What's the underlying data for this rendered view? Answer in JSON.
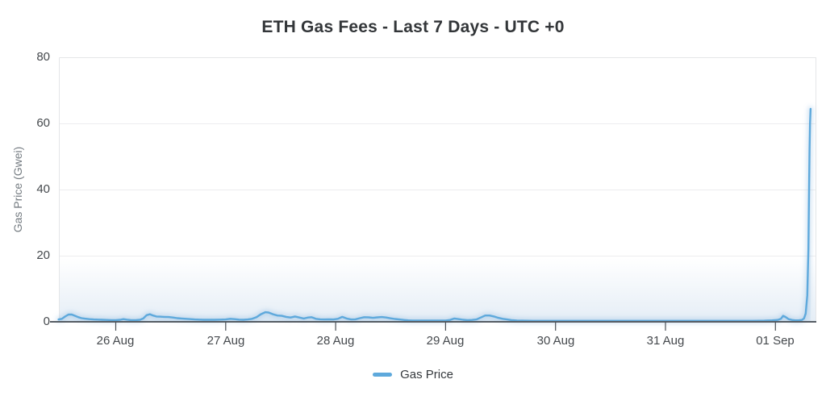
{
  "chart_data": {
    "type": "line",
    "title": "ETH Gas Fees - Last 7 Days - UTC +0",
    "xlabel": "",
    "ylabel": "Gas Price (Gwei)",
    "x_unit": "days since 26 Aug 00:00 UTC",
    "x_tick_labels": [
      "26 Aug",
      "27 Aug",
      "28 Aug",
      "29 Aug",
      "30 Aug",
      "31 Aug",
      "01 Sep"
    ],
    "x_tick_days": [
      0,
      1,
      2,
      3,
      4,
      5,
      6
    ],
    "y_ticks": [
      0,
      20,
      40,
      60,
      80
    ],
    "ylim": [
      0,
      80
    ],
    "xlim": [
      -0.52,
      6.37
    ],
    "grid": true,
    "legend_position": "bottom",
    "colors": {
      "line": "#5ea9dc",
      "glow": "rgba(126,178,222,0.32)",
      "area_fill": "rgba(130,182,226,0.13)",
      "gridline": "#ededef",
      "plot_border": "#e4e6e8",
      "axis_line": "#565d64",
      "tick_text": "#45494d",
      "title_text": "#333639"
    },
    "series": [
      {
        "name": "Gas Price",
        "color": "#5ea9dc",
        "peak_value": 64.4,
        "points": [
          [
            -0.52,
            0.7
          ],
          [
            -0.49,
            0.9
          ],
          [
            -0.46,
            1.6
          ],
          [
            -0.43,
            2.2
          ],
          [
            -0.4,
            2.2
          ],
          [
            -0.37,
            1.8
          ],
          [
            -0.34,
            1.4
          ],
          [
            -0.31,
            1.1
          ],
          [
            -0.28,
            0.95
          ],
          [
            -0.24,
            0.8
          ],
          [
            -0.2,
            0.7
          ],
          [
            -0.16,
            0.65
          ],
          [
            -0.12,
            0.6
          ],
          [
            -0.08,
            0.55
          ],
          [
            -0.04,
            0.5
          ],
          [
            0,
            0.5
          ],
          [
            0.04,
            0.6
          ],
          [
            0.07,
            0.8
          ],
          [
            0.1,
            0.65
          ],
          [
            0.14,
            0.5
          ],
          [
            0.18,
            0.5
          ],
          [
            0.22,
            0.6
          ],
          [
            0.25,
            1.0
          ],
          [
            0.28,
            2.0
          ],
          [
            0.31,
            2.3
          ],
          [
            0.34,
            1.9
          ],
          [
            0.37,
            1.6
          ],
          [
            0.4,
            1.55
          ],
          [
            0.44,
            1.5
          ],
          [
            0.48,
            1.45
          ],
          [
            0.52,
            1.3
          ],
          [
            0.56,
            1.1
          ],
          [
            0.6,
            1.0
          ],
          [
            0.64,
            0.9
          ],
          [
            0.68,
            0.8
          ],
          [
            0.72,
            0.7
          ],
          [
            0.76,
            0.65
          ],
          [
            0.8,
            0.6
          ],
          [
            0.85,
            0.6
          ],
          [
            0.9,
            0.6
          ],
          [
            0.95,
            0.65
          ],
          [
            1.0,
            0.7
          ],
          [
            1.04,
            0.9
          ],
          [
            1.08,
            0.8
          ],
          [
            1.12,
            0.65
          ],
          [
            1.16,
            0.6
          ],
          [
            1.2,
            0.7
          ],
          [
            1.24,
            0.9
          ],
          [
            1.28,
            1.4
          ],
          [
            1.32,
            2.3
          ],
          [
            1.36,
            2.9
          ],
          [
            1.39,
            2.8
          ],
          [
            1.43,
            2.3
          ],
          [
            1.47,
            1.9
          ],
          [
            1.51,
            1.8
          ],
          [
            1.55,
            1.5
          ],
          [
            1.59,
            1.3
          ],
          [
            1.63,
            1.6
          ],
          [
            1.67,
            1.3
          ],
          [
            1.71,
            1.0
          ],
          [
            1.75,
            1.3
          ],
          [
            1.78,
            1.4
          ],
          [
            1.82,
            0.9
          ],
          [
            1.86,
            0.75
          ],
          [
            1.9,
            0.7
          ],
          [
            1.94,
            0.75
          ],
          [
            1.98,
            0.7
          ],
          [
            2.02,
            0.9
          ],
          [
            2.06,
            1.5
          ],
          [
            2.1,
            1.0
          ],
          [
            2.14,
            0.7
          ],
          [
            2.18,
            0.75
          ],
          [
            2.22,
            1.1
          ],
          [
            2.26,
            1.4
          ],
          [
            2.3,
            1.35
          ],
          [
            2.34,
            1.2
          ],
          [
            2.38,
            1.35
          ],
          [
            2.42,
            1.45
          ],
          [
            2.46,
            1.3
          ],
          [
            2.5,
            1.05
          ],
          [
            2.54,
            0.85
          ],
          [
            2.58,
            0.7
          ],
          [
            2.62,
            0.55
          ],
          [
            2.66,
            0.45
          ],
          [
            2.7,
            0.4
          ],
          [
            2.75,
            0.4
          ],
          [
            2.8,
            0.4
          ],
          [
            2.85,
            0.4
          ],
          [
            2.9,
            0.4
          ],
          [
            2.95,
            0.4
          ],
          [
            3.0,
            0.4
          ],
          [
            3.04,
            0.55
          ],
          [
            3.08,
            1.0
          ],
          [
            3.12,
            0.8
          ],
          [
            3.16,
            0.6
          ],
          [
            3.2,
            0.5
          ],
          [
            3.24,
            0.55
          ],
          [
            3.28,
            0.7
          ],
          [
            3.32,
            1.3
          ],
          [
            3.36,
            1.9
          ],
          [
            3.4,
            1.9
          ],
          [
            3.44,
            1.6
          ],
          [
            3.48,
            1.2
          ],
          [
            3.52,
            0.9
          ],
          [
            3.56,
            0.7
          ],
          [
            3.6,
            0.5
          ],
          [
            3.65,
            0.4
          ],
          [
            3.7,
            0.35
          ],
          [
            3.8,
            0.3
          ],
          [
            3.9,
            0.3
          ],
          [
            4.0,
            0.3
          ],
          [
            4.15,
            0.3
          ],
          [
            4.3,
            0.3
          ],
          [
            4.45,
            0.3
          ],
          [
            4.6,
            0.3
          ],
          [
            4.75,
            0.3
          ],
          [
            4.9,
            0.3
          ],
          [
            5.05,
            0.3
          ],
          [
            5.2,
            0.3
          ],
          [
            5.35,
            0.3
          ],
          [
            5.5,
            0.3
          ],
          [
            5.65,
            0.3
          ],
          [
            5.8,
            0.3
          ],
          [
            5.9,
            0.35
          ],
          [
            5.97,
            0.45
          ],
          [
            6.02,
            0.55
          ],
          [
            6.05,
            0.9
          ],
          [
            6.07,
            1.8
          ],
          [
            6.09,
            1.5
          ],
          [
            6.12,
            0.8
          ],
          [
            6.15,
            0.55
          ],
          [
            6.18,
            0.45
          ],
          [
            6.21,
            0.45
          ],
          [
            6.24,
            0.55
          ],
          [
            6.26,
            1.0
          ],
          [
            6.275,
            2.5
          ],
          [
            6.29,
            8
          ],
          [
            6.3,
            22
          ],
          [
            6.305,
            38
          ],
          [
            6.31,
            52
          ],
          [
            6.315,
            60
          ],
          [
            6.32,
            64.4
          ]
        ]
      }
    ]
  },
  "legend": {
    "label": "Gas Price"
  }
}
